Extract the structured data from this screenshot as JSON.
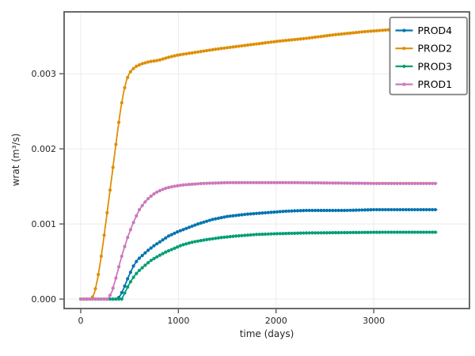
{
  "chart_data": {
    "type": "line",
    "title": "",
    "xlabel": "time (days)",
    "ylabel": "wrat (m³/s)",
    "xlim": [
      -170,
      3980
    ],
    "ylim": [
      -0.000126,
      0.003824
    ],
    "grid": true,
    "legend_position": "upper right",
    "marker": "circle",
    "marker_interval_days": 30,
    "xticks": {
      "values": [
        0,
        1000,
        2000,
        3000
      ],
      "labels": [
        "0",
        "1000",
        "2000",
        "3000"
      ]
    },
    "yticks": {
      "values": [
        0,
        0.001,
        0.002,
        0.003
      ],
      "labels": [
        "0.000",
        "0.001",
        "0.002",
        "0.003"
      ]
    },
    "style": {
      "grid_color": "#EBEBEB",
      "spine_color": "#595959",
      "tick_color": "#595959",
      "text_color": "#262626",
      "legend_border_color": "#7F7F7F",
      "background_color": "#FFFFFF"
    },
    "series": [
      {
        "name": "PROD4",
        "color": "#0173B2",
        "points": [
          [
            0,
            0
          ],
          [
            380,
            0
          ],
          [
            410,
            6e-05
          ],
          [
            440,
            0.00014
          ],
          [
            470,
            0.00024
          ],
          [
            500,
            0.00033
          ],
          [
            540,
            0.00044
          ],
          [
            580,
            0.00052
          ],
          [
            630,
            0.00058
          ],
          [
            690,
            0.00065
          ],
          [
            750,
            0.00071
          ],
          [
            820,
            0.00077
          ],
          [
            900,
            0.00084
          ],
          [
            1000,
            0.0009
          ],
          [
            1100,
            0.00095
          ],
          [
            1200,
            0.001
          ],
          [
            1350,
            0.00106
          ],
          [
            1500,
            0.0011
          ],
          [
            1700,
            0.00113
          ],
          [
            1900,
            0.00115
          ],
          [
            2100,
            0.00117
          ],
          [
            2300,
            0.00118
          ],
          [
            2700,
            0.00118
          ],
          [
            3000,
            0.00119
          ],
          [
            3650,
            0.00119
          ]
        ]
      },
      {
        "name": "PROD2",
        "color": "#DE8F05",
        "points": [
          [
            0,
            0
          ],
          [
            110,
            0
          ],
          [
            140,
            8e-05
          ],
          [
            170,
            0.00025
          ],
          [
            200,
            0.00048
          ],
          [
            230,
            0.00075
          ],
          [
            260,
            0.00105
          ],
          [
            290,
            0.00135
          ],
          [
            320,
            0.00165
          ],
          [
            350,
            0.00196
          ],
          [
            380,
            0.00226
          ],
          [
            410,
            0.00254
          ],
          [
            440,
            0.00276
          ],
          [
            470,
            0.00292
          ],
          [
            500,
            0.00301
          ],
          [
            530,
            0.00306
          ],
          [
            570,
            0.0031
          ],
          [
            620,
            0.00313
          ],
          [
            700,
            0.00316
          ],
          [
            800,
            0.00318
          ],
          [
            900,
            0.00322
          ],
          [
            1000,
            0.00325
          ],
          [
            1200,
            0.00329
          ],
          [
            1400,
            0.00333
          ],
          [
            1700,
            0.00338
          ],
          [
            2000,
            0.00343
          ],
          [
            2300,
            0.00347
          ],
          [
            2600,
            0.00352
          ],
          [
            2900,
            0.00356
          ],
          [
            3100,
            0.00358
          ],
          [
            3300,
            0.0036
          ],
          [
            3650,
            0.00362
          ]
        ]
      },
      {
        "name": "PROD3",
        "color": "#029E73",
        "points": [
          [
            0,
            0
          ],
          [
            420,
            0
          ],
          [
            450,
            8e-05
          ],
          [
            480,
            0.00016
          ],
          [
            510,
            0.00023
          ],
          [
            550,
            0.00031
          ],
          [
            590,
            0.00037
          ],
          [
            650,
            0.00044
          ],
          [
            714,
            0.00051
          ],
          [
            790,
            0.00057
          ],
          [
            876,
            0.00063
          ],
          [
            950,
            0.00067
          ],
          [
            1038,
            0.00072
          ],
          [
            1150,
            0.00076
          ],
          [
            1280,
            0.00079
          ],
          [
            1443,
            0.00082
          ],
          [
            1600,
            0.00084
          ],
          [
            1800,
            0.00086
          ],
          [
            2000,
            0.00087
          ],
          [
            2300,
            0.00088
          ],
          [
            2700,
            0.000885
          ],
          [
            3100,
            0.00089
          ],
          [
            3650,
            0.00089
          ]
        ]
      },
      {
        "name": "PROD1",
        "color": "#CC78BC",
        "points": [
          [
            0,
            0
          ],
          [
            280,
            0
          ],
          [
            320,
            0.0001
          ],
          [
            360,
            0.00028
          ],
          [
            400,
            0.00048
          ],
          [
            440,
            0.00066
          ],
          [
            480,
            0.00082
          ],
          [
            520,
            0.00096
          ],
          [
            560,
            0.00108
          ],
          [
            600,
            0.00119
          ],
          [
            650,
            0.00128
          ],
          [
            700,
            0.00135
          ],
          [
            760,
            0.00141
          ],
          [
            820,
            0.00145
          ],
          [
            880,
            0.00148
          ],
          [
            950,
            0.0015
          ],
          [
            1050,
            0.00152
          ],
          [
            1250,
            0.00154
          ],
          [
            1500,
            0.00155
          ],
          [
            2200,
            0.00155
          ],
          [
            3000,
            0.00154
          ],
          [
            3650,
            0.00154
          ]
        ]
      }
    ],
    "legend_entries": [
      "PROD4",
      "PROD2",
      "PROD3",
      "PROD1"
    ]
  }
}
